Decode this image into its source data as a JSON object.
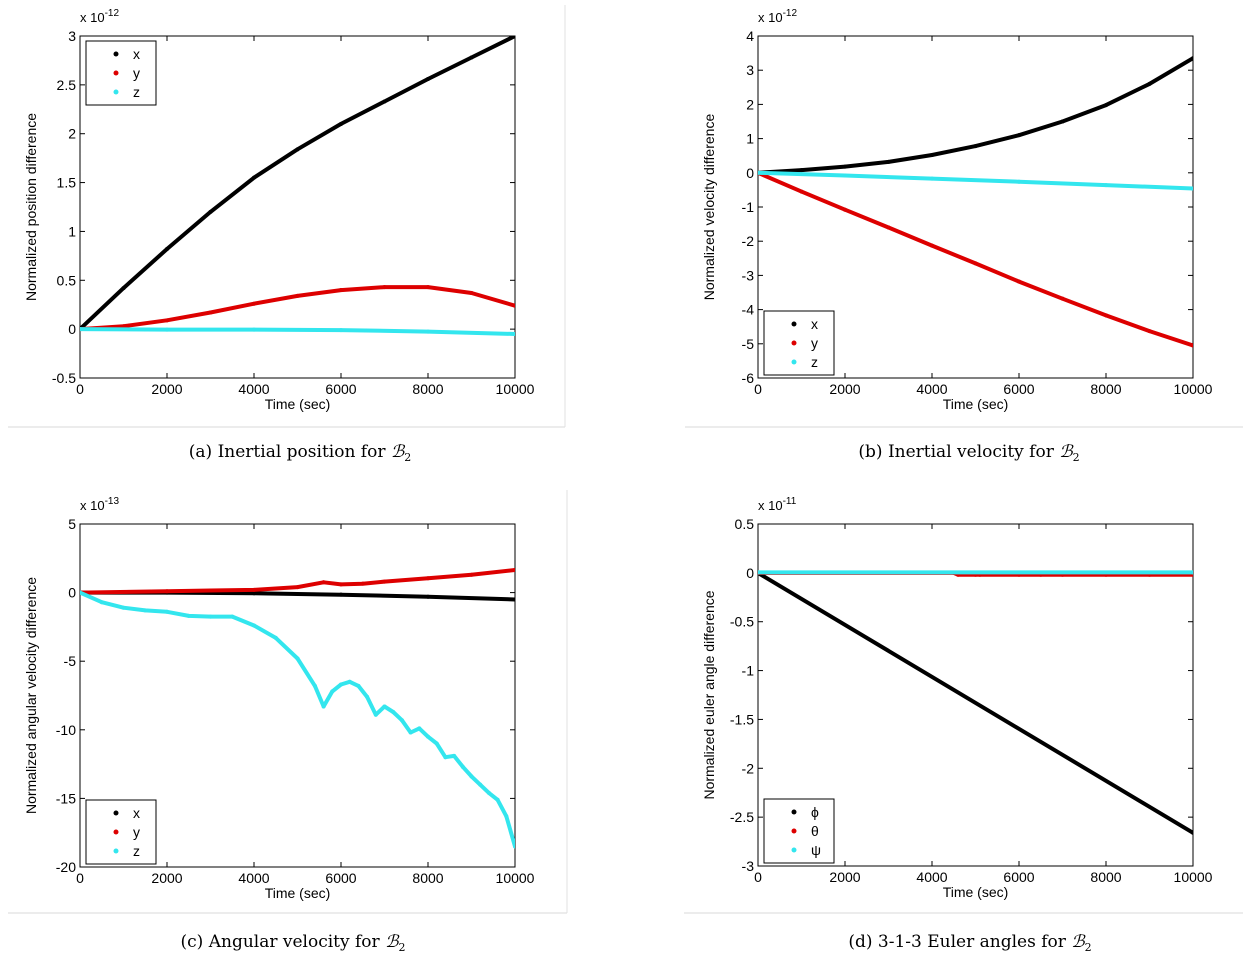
{
  "panels": [
    {
      "caption_main": "(a)  Inertial position for ",
      "caption_math": "ℬ",
      "caption_sub": "2"
    },
    {
      "caption_main": "(b)  Inertial velocity for ",
      "caption_math": "ℬ",
      "caption_sub": "2"
    },
    {
      "caption_main": "(c)  Angular velocity for ",
      "caption_math": "ℬ",
      "caption_sub": "2"
    },
    {
      "caption_main": "(d)  3-1-3 Euler angles for ",
      "caption_math": "ℬ",
      "caption_sub": "2"
    }
  ],
  "chart_data": [
    {
      "type": "scatter",
      "xlabel": "Time (sec)",
      "ylabel": "Normalized position difference",
      "multiplier": "x 10",
      "multiplier_exp": "-12",
      "xlim": [
        0,
        10000
      ],
      "ylim": [
        -0.5,
        3
      ],
      "xticks": [
        0,
        2000,
        4000,
        6000,
        8000,
        10000
      ],
      "yticks": [
        -0.5,
        0,
        0.5,
        1,
        1.5,
        2,
        2.5,
        3
      ],
      "ytick_labels": [
        "-0.5",
        "0",
        "0.5",
        "1",
        "1.5",
        "2",
        "2.5",
        "3"
      ],
      "legend_position": "top-left",
      "series": [
        {
          "name": "x",
          "color": "#000000",
          "x": [
            0,
            1000,
            2000,
            3000,
            4000,
            5000,
            6000,
            7000,
            8000,
            9000,
            10000
          ],
          "y": [
            0,
            0.42,
            0.82,
            1.2,
            1.55,
            1.84,
            2.1,
            2.33,
            2.56,
            2.78,
            3.0
          ]
        },
        {
          "name": "y",
          "color": "#dd0000",
          "x": [
            0,
            1000,
            2000,
            3000,
            4000,
            5000,
            6000,
            7000,
            8000,
            9000,
            10000
          ],
          "y": [
            0,
            0.03,
            0.09,
            0.17,
            0.26,
            0.34,
            0.4,
            0.43,
            0.43,
            0.37,
            0.24
          ]
        },
        {
          "name": "z",
          "color": "#33e6ee",
          "x": [
            0,
            2000,
            4000,
            6000,
            8000,
            10000
          ],
          "y": [
            0,
            -0.005,
            -0.005,
            -0.01,
            -0.025,
            -0.05
          ]
        }
      ]
    },
    {
      "type": "scatter",
      "xlabel": "Time (sec)",
      "ylabel": "Normalized velocity difference",
      "multiplier": "x 10",
      "multiplier_exp": "-12",
      "xlim": [
        0,
        10000
      ],
      "ylim": [
        -6,
        4
      ],
      "xticks": [
        0,
        2000,
        4000,
        6000,
        8000,
        10000
      ],
      "yticks": [
        -6,
        -5,
        -4,
        -3,
        -2,
        -1,
        0,
        1,
        2,
        3,
        4
      ],
      "ytick_labels": [
        "-6",
        "-5",
        "-4",
        "-3",
        "-2",
        "-1",
        "0",
        "1",
        "2",
        "3",
        "4"
      ],
      "legend_position": "bottom-left",
      "series": [
        {
          "name": "x",
          "color": "#000000",
          "x": [
            0,
            1000,
            2000,
            3000,
            4000,
            5000,
            6000,
            7000,
            8000,
            9000,
            10000
          ],
          "y": [
            0,
            0.08,
            0.18,
            0.32,
            0.52,
            0.78,
            1.1,
            1.5,
            1.98,
            2.6,
            3.35
          ]
        },
        {
          "name": "y",
          "color": "#dd0000",
          "x": [
            0,
            1000,
            2000,
            3000,
            4000,
            5000,
            6000,
            7000,
            8000,
            9000,
            10000
          ],
          "y": [
            0,
            -0.55,
            -1.08,
            -1.6,
            -2.13,
            -2.65,
            -3.18,
            -3.68,
            -4.17,
            -4.63,
            -5.05
          ]
        },
        {
          "name": "z",
          "color": "#33e6ee",
          "x": [
            0,
            2000,
            4000,
            6000,
            8000,
            10000
          ],
          "y": [
            0,
            -0.08,
            -0.17,
            -0.26,
            -0.36,
            -0.46
          ]
        }
      ]
    },
    {
      "type": "scatter",
      "xlabel": "Time (sec)",
      "ylabel": "Normalized angular velocity difference",
      "multiplier": "x 10",
      "multiplier_exp": "-13",
      "xlim": [
        0,
        10000
      ],
      "ylim": [
        -20,
        5
      ],
      "xticks": [
        0,
        2000,
        4000,
        6000,
        8000,
        10000
      ],
      "yticks": [
        -20,
        -15,
        -10,
        -5,
        0,
        5
      ],
      "ytick_labels": [
        "-20",
        "-15",
        "-10",
        "-5",
        "0",
        "5"
      ],
      "legend_position": "bottom-left",
      "series": [
        {
          "name": "x",
          "color": "#000000",
          "x": [
            0,
            2000,
            4000,
            6000,
            8000,
            10000
          ],
          "y": [
            0,
            0,
            -0.05,
            -0.15,
            -0.3,
            -0.5
          ]
        },
        {
          "name": "y",
          "color": "#dd0000",
          "x": [
            0,
            2000,
            3000,
            4000,
            5000,
            5600,
            6000,
            6500,
            7000,
            8000,
            9000,
            10000
          ],
          "y": [
            0,
            0.1,
            0.15,
            0.2,
            0.4,
            0.75,
            0.6,
            0.65,
            0.8,
            1.05,
            1.3,
            1.65
          ]
        },
        {
          "name": "z",
          "color": "#33e6ee",
          "x": [
            0,
            500,
            1000,
            1500,
            2000,
            2500,
            3000,
            3500,
            4000,
            4500,
            5000,
            5400,
            5600,
            5800,
            6000,
            6200,
            6400,
            6600,
            6800,
            7000,
            7200,
            7400,
            7600,
            7800,
            8000,
            8200,
            8400,
            8600,
            8800,
            9000,
            9200,
            9400,
            9600,
            9800,
            10000
          ],
          "y": [
            0,
            -0.7,
            -1.1,
            -1.3,
            -1.4,
            -1.7,
            -1.75,
            -1.75,
            -2.4,
            -3.3,
            -4.8,
            -6.8,
            -8.3,
            -7.2,
            -6.7,
            -6.5,
            -6.8,
            -7.6,
            -8.9,
            -8.3,
            -8.7,
            -9.3,
            -10.2,
            -9.9,
            -10.5,
            -11.0,
            -12.0,
            -11.9,
            -12.7,
            -13.4,
            -14.0,
            -14.6,
            -15.1,
            -16.3,
            -18.5
          ]
        }
      ]
    },
    {
      "type": "scatter",
      "xlabel": "Time (sec)",
      "ylabel": "Normalized euler angle difference",
      "multiplier": "x 10",
      "multiplier_exp": "-11",
      "xlim": [
        0,
        10000
      ],
      "ylim": [
        -3,
        0.5
      ],
      "xticks": [
        0,
        2000,
        4000,
        6000,
        8000,
        10000
      ],
      "yticks": [
        -3,
        -2.5,
        -2,
        -1.5,
        -1,
        -0.5,
        0,
        0.5
      ],
      "ytick_labels": [
        "-3",
        "-2.5",
        "-2",
        "-1.5",
        "-1",
        "-0.5",
        "0",
        "0.5"
      ],
      "legend_position": "bottom-left",
      "series": [
        {
          "name": "ϕ",
          "color": "#000000",
          "x": [
            0,
            10000
          ],
          "y": [
            0,
            -2.66
          ]
        },
        {
          "name": "θ",
          "color": "#dd0000",
          "x": [
            0,
            4500,
            4600,
            5000,
            5100,
            6000,
            6500,
            7000,
            8000,
            9000,
            10000
          ],
          "y": [
            0,
            0,
            -0.02,
            -0.02,
            -0.02,
            -0.02,
            -0.02,
            -0.02,
            -0.02,
            -0.02,
            -0.02
          ]
        },
        {
          "name": "ψ",
          "color": "#33e6ee",
          "x": [
            0,
            10000
          ],
          "y": [
            0.005,
            0.005
          ]
        }
      ]
    }
  ]
}
